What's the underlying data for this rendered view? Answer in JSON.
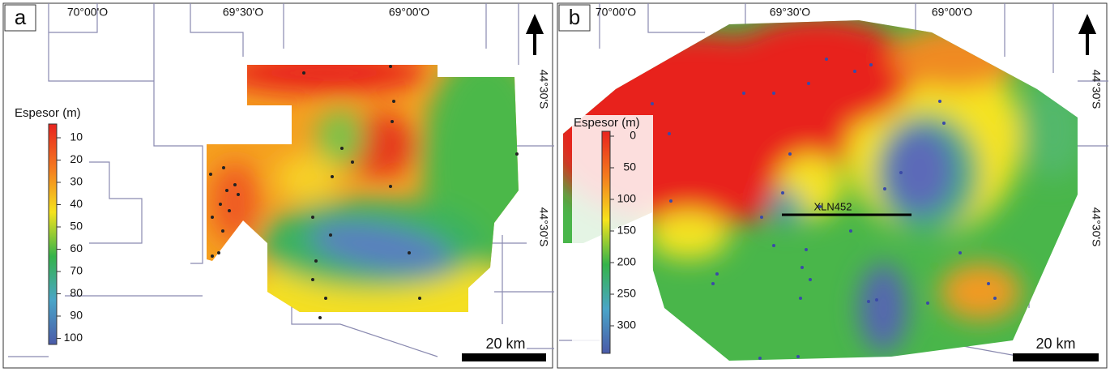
{
  "panels": [
    {
      "label": "a",
      "longitudes": [
        "70°00'O",
        "69°30'O",
        "69°00'O"
      ],
      "latitudes": [
        "44°30'S",
        "44°30'S"
      ],
      "legend": {
        "title": "Espesor (m)",
        "ticks": [
          10,
          20,
          30,
          40,
          50,
          60,
          70,
          80,
          90,
          100
        ]
      },
      "scale_bar": "20 km"
    },
    {
      "label": "b",
      "longitudes": [
        "70°00'O",
        "69°30'O",
        "69°00'O"
      ],
      "latitudes": [
        "44°30'S",
        "44°30'S"
      ],
      "legend": {
        "title": "Espesor (m)",
        "ticks": [
          0,
          50,
          100,
          150,
          200,
          250,
          300
        ]
      },
      "scale_bar": "20 km",
      "well": "XLN452"
    }
  ]
}
